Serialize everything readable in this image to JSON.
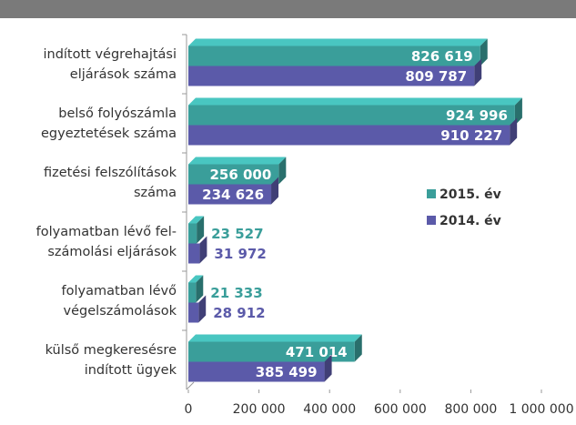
{
  "chart_data": {
    "type": "bar",
    "orientation": "horizontal",
    "categories": [
      "indított végrehajtási\neljárások száma",
      "belső folyószámla\negyeztetések száma",
      "fizetési felszólítások\nszáma",
      "folyamatban lévő fel-\nszámolási eljárások",
      "folyamatban lévő\nvégelszámolások",
      "külső megkeresésre\nindított ügyek"
    ],
    "series": [
      {
        "name": "2015. év",
        "color": "#3a9e9a",
        "values": [
          826619,
          924996,
          256000,
          23527,
          21333,
          471014
        ],
        "value_labels": [
          "826 619",
          "924 996",
          "256 000",
          "23 527",
          "21 333",
          "471 014"
        ]
      },
      {
        "name": "2014. év",
        "color": "#5b5aa9",
        "values": [
          809787,
          910227,
          234626,
          31972,
          28912,
          385499
        ],
        "value_labels": [
          "809 787",
          "910 227",
          "234 626",
          "31 972",
          "28 912",
          "385 499"
        ]
      }
    ],
    "xlim": [
      0,
      1000000
    ],
    "xticks": [
      0,
      {
        "value": 200000,
        "label": "200 000"
      },
      {
        "value": 400000,
        "label": "400 000"
      },
      {
        "value": 600000,
        "label": "600 000"
      },
      {
        "value": 800000,
        "label": "800 000"
      },
      {
        "value": 1000000,
        "label": "1 000 000"
      }
    ],
    "legend": "right"
  }
}
